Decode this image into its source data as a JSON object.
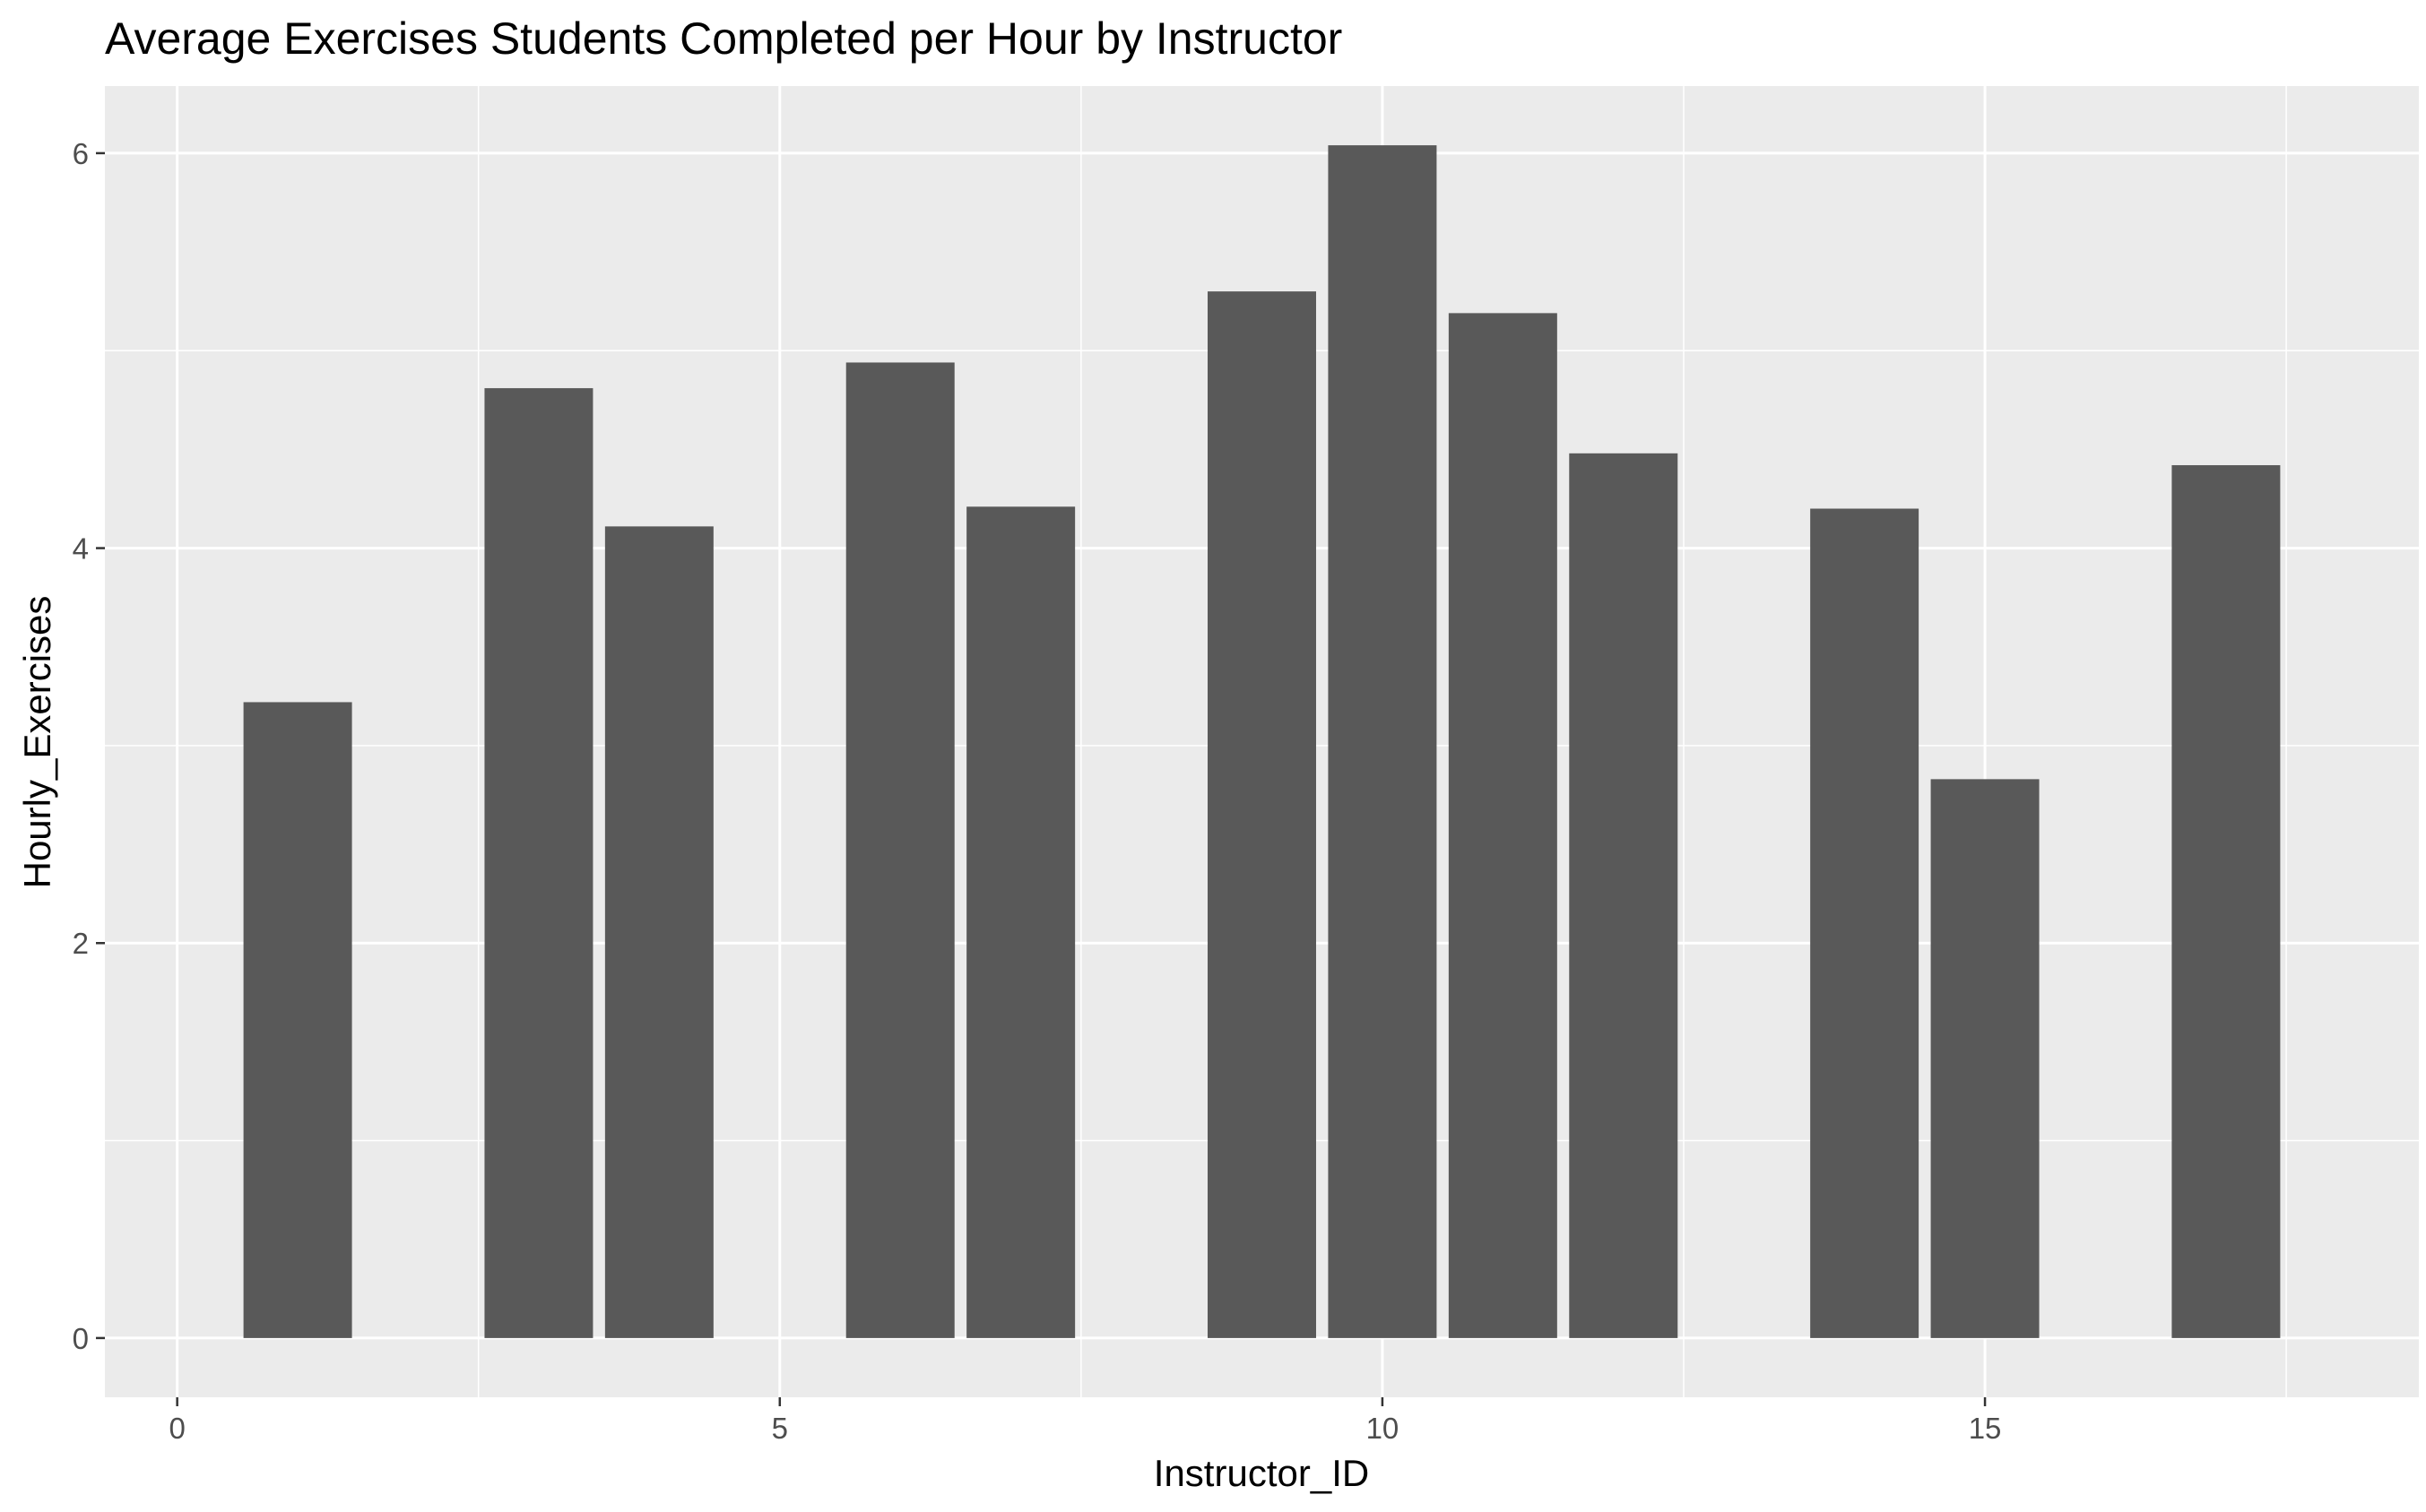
{
  "chart_data": {
    "type": "bar",
    "title": "Average Exercises Students Completed per Hour by Instructor",
    "xlabel": "Instructor_ID",
    "ylabel": "Hourly_Exercises",
    "x": [
      1,
      3,
      4,
      6,
      7,
      9,
      10,
      11,
      12,
      14,
      15,
      17
    ],
    "values": [
      3.22,
      4.81,
      4.11,
      4.94,
      4.21,
      5.3,
      6.04,
      5.19,
      4.48,
      4.2,
      2.83,
      4.42
    ],
    "xlim": [
      -0.6,
      18.6
    ],
    "ylim": [
      -0.3,
      6.34
    ],
    "x_ticks": [
      "0",
      "5",
      "10",
      "15"
    ],
    "y_ticks": [
      "0",
      "2",
      "4",
      "6"
    ],
    "grid": true,
    "colors": {
      "panel": "#ebebeb",
      "bar": "#595959",
      "grid": "#ffffff",
      "tick_text": "#4d4d4d"
    }
  }
}
